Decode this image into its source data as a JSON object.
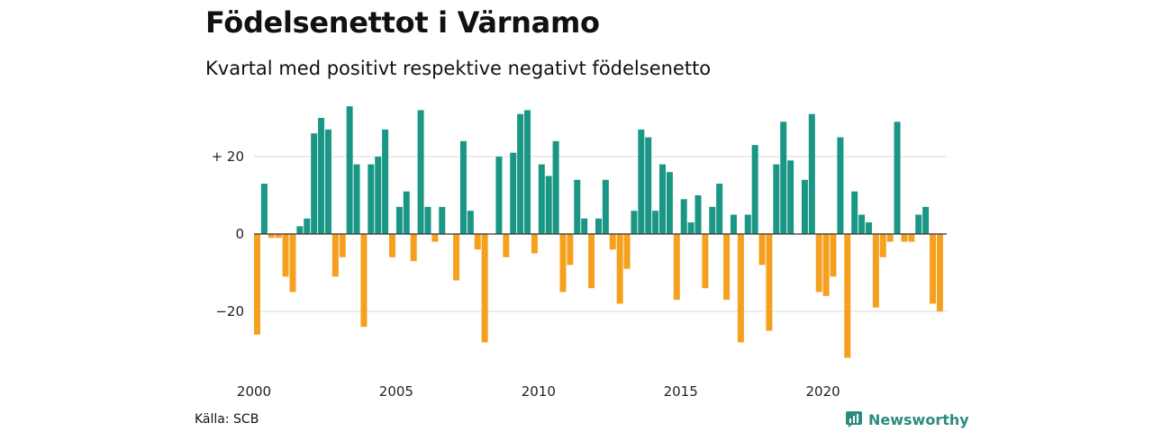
{
  "title": "Födelsenettot i Värnamo",
  "subtitle": "Kvartal med positivt respektive negativt födelsenetto",
  "source": "Källa: SCB",
  "brand": "Newsworthy",
  "colors": {
    "positive": "#1a9685",
    "negative": "#f5a01e",
    "grid": "#d8d8d8",
    "zero": "#333333",
    "brand": "#2d8b7f"
  },
  "chart_data": {
    "type": "bar",
    "title": "Födelsenettot i Värnamo",
    "subtitle": "Kvartal med positivt respektive negativt födelsenetto",
    "x_start_year": 2000,
    "periods_per_year": 4,
    "ylim": [
      -34,
      34
    ],
    "yticks": [
      20,
      0,
      -20
    ],
    "ytick_labels": [
      "+ 20",
      "0",
      "−20"
    ],
    "xticks": [
      2000,
      2005,
      2010,
      2015,
      2020
    ],
    "xtick_labels": [
      "2000",
      "2005",
      "2010",
      "2015",
      "2020"
    ],
    "grid": true,
    "values": [
      -26,
      13,
      -1,
      -1,
      -11,
      -15,
      2,
      4,
      26,
      30,
      27,
      -11,
      -6,
      33,
      18,
      -24,
      18,
      20,
      27,
      -6,
      7,
      11,
      -7,
      32,
      7,
      -2,
      7,
      0,
      -12,
      24,
      6,
      -4,
      -28,
      0,
      20,
      -6,
      21,
      31,
      32,
      -5,
      18,
      15,
      24,
      -15,
      -8,
      14,
      4,
      -14,
      4,
      14,
      -4,
      -18,
      -9,
      6,
      27,
      25,
      6,
      18,
      16,
      -17,
      9,
      3,
      10,
      -14,
      7,
      13,
      -17,
      5,
      -28,
      5,
      23,
      -8,
      -25,
      18,
      29,
      19,
      0,
      14,
      31,
      -15,
      -16,
      -11,
      25,
      -32,
      11,
      5,
      3,
      -19,
      -6,
      -2,
      29,
      -2,
      -2,
      5,
      7,
      -18,
      -20
    ]
  }
}
